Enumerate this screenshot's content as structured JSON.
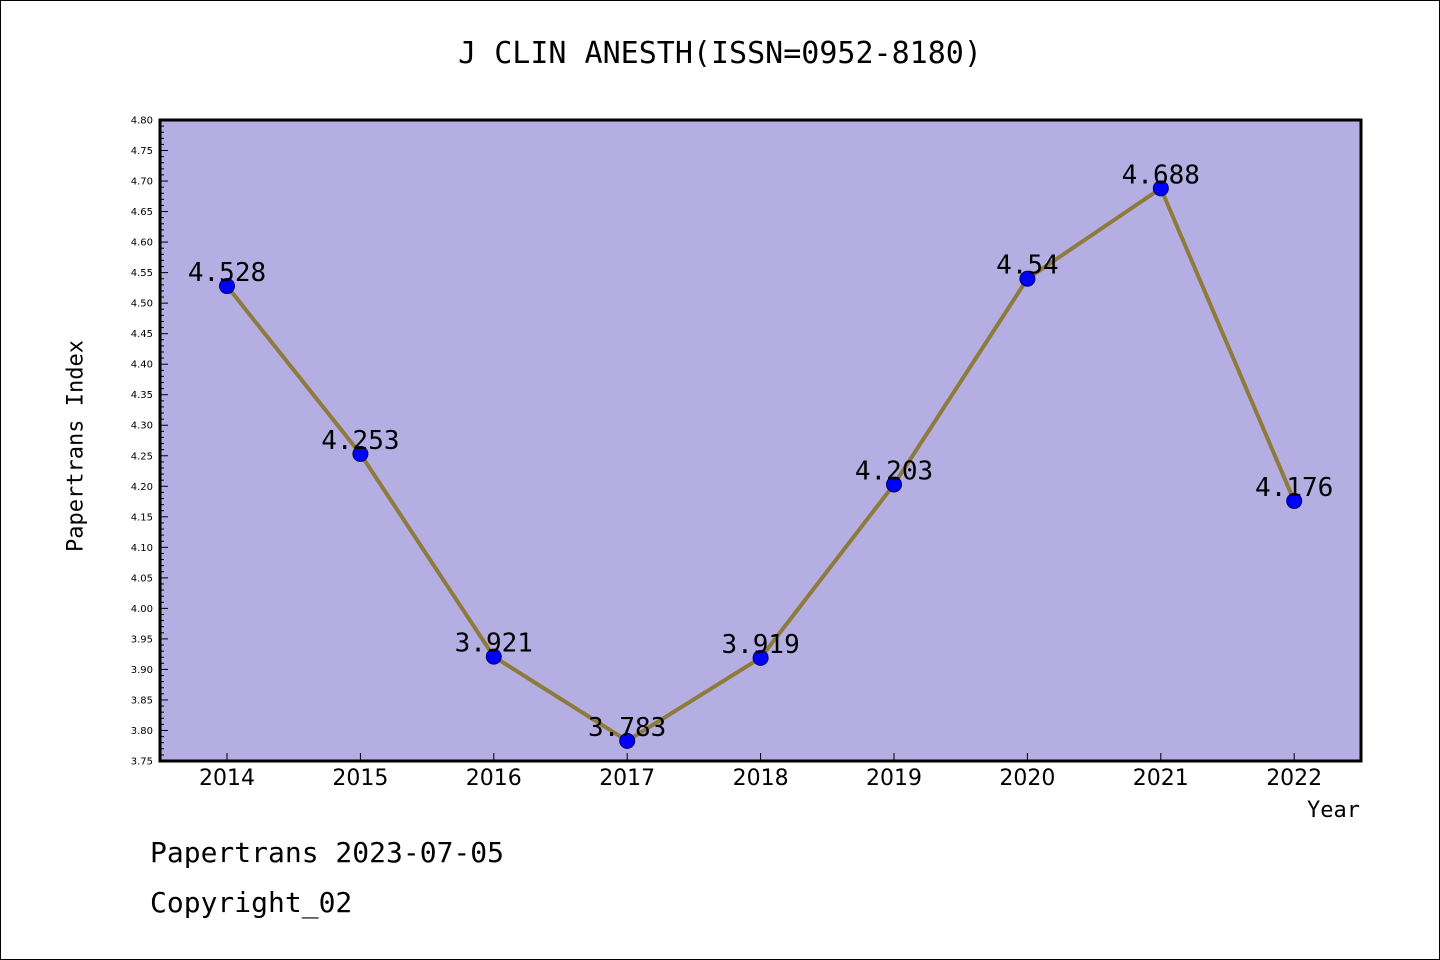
{
  "chart_data": {
    "type": "line",
    "title": "J CLIN ANESTH(ISSN=0952-8180)",
    "xlabel": "Year",
    "ylabel": "Papertrans Index",
    "categories": [
      "2014",
      "2015",
      "2016",
      "2017",
      "2018",
      "2019",
      "2020",
      "2021",
      "2022"
    ],
    "series": [
      {
        "values": [
          4.528,
          4.253,
          3.921,
          3.783,
          3.919,
          4.203,
          4.54,
          4.688,
          4.176
        ],
        "labels": [
          "4.528",
          "4.253",
          "3.921",
          "3.783",
          "3.919",
          "4.203",
          "4.54",
          "4.688",
          "4.176"
        ]
      }
    ],
    "ylim": [
      3.75,
      4.8
    ],
    "ytick_step": 0.05,
    "ytick_labels": [
      "3.75",
      "3.80",
      "3.85",
      "3.90",
      "3.95",
      "4.00",
      "4.05",
      "4.10",
      "4.15",
      "4.20",
      "4.25",
      "4.30",
      "4.35",
      "4.40",
      "4.45",
      "4.50",
      "4.55",
      "4.60",
      "4.65",
      "4.70",
      "4.75",
      "4.80"
    ],
    "grid": false,
    "colors": {
      "plot_background": "#b4aee2",
      "line": "#8e7b3c",
      "marker": "#0000ff"
    }
  },
  "footer": {
    "line1": "Papertrans 2023-07-05",
    "line2": "Copyright_02"
  }
}
